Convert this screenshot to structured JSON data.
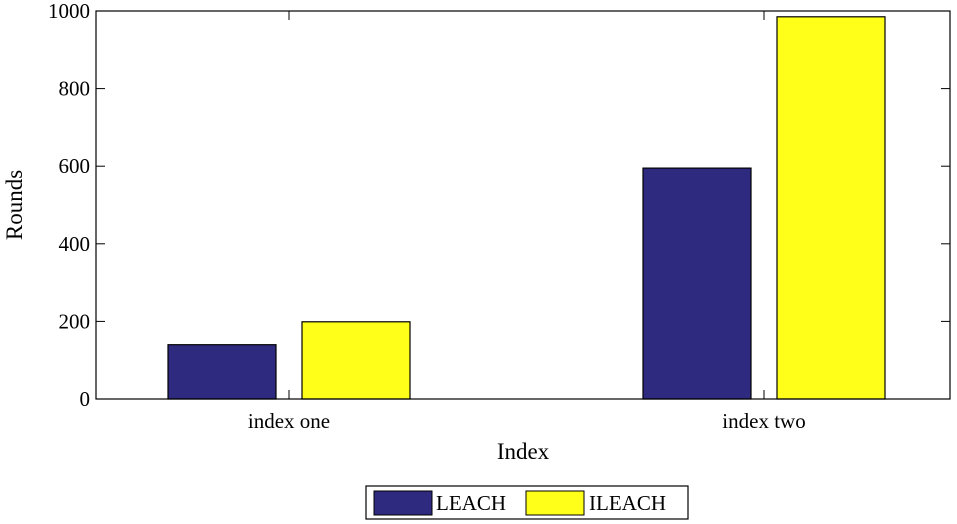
{
  "chart_data": {
    "type": "bar",
    "title": "",
    "xlabel": "Index",
    "ylabel": "Rounds",
    "categories": [
      "index one",
      "index two"
    ],
    "series": [
      {
        "name": "LEACH",
        "values": [
          140,
          595
        ],
        "color": "#2e2a80"
      },
      {
        "name": "ILEACH",
        "values": [
          199,
          985
        ],
        "color": "#ffff1a"
      }
    ],
    "ylim": [
      0,
      1000
    ],
    "yticks": [
      0,
      200,
      400,
      600,
      800,
      1000
    ],
    "grid": false,
    "legend_position": "bottom-center",
    "legend_orientation": "horizontal"
  }
}
